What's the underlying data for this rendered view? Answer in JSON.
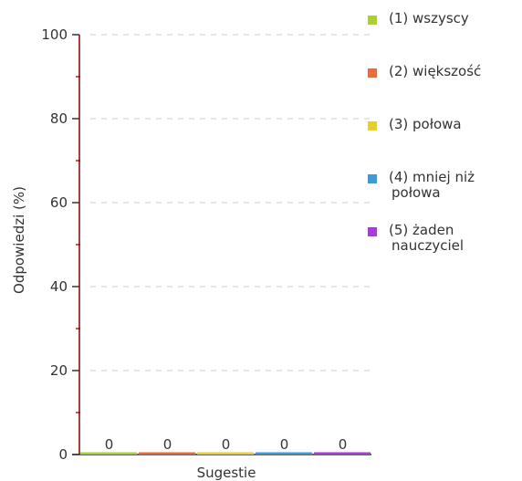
{
  "chart_data": {
    "type": "bar",
    "categories": [
      "Sugestie"
    ],
    "series": [
      {
        "name": "(1) wszyscy",
        "values": [
          0
        ],
        "color": "#a9d134"
      },
      {
        "name": "(2) większość",
        "values": [
          0
        ],
        "color": "#ec6a3a"
      },
      {
        "name": "(3) połowa",
        "values": [
          0
        ],
        "color": "#e9ce2e"
      },
      {
        "name": "(4) mniej niż połowa",
        "values": [
          0
        ],
        "color": "#3d9bdc"
      },
      {
        "name": "(5) żaden nauczyciel",
        "values": [
          0
        ],
        "color": "#a93ae0"
      }
    ],
    "data_labels": [
      "0",
      "0",
      "0",
      "0",
      "0"
    ],
    "title": "",
    "xlabel": "Sugestie",
    "ylabel": "Odpowiedzi (%)",
    "ylim": [
      0,
      100
    ],
    "yticks": [
      0,
      20,
      40,
      60,
      80,
      100
    ],
    "grid": true,
    "legend": "right",
    "axis_color": "#8b0000",
    "minor_tick_color": "#ff0000",
    "grid_color": "#dddddd"
  }
}
